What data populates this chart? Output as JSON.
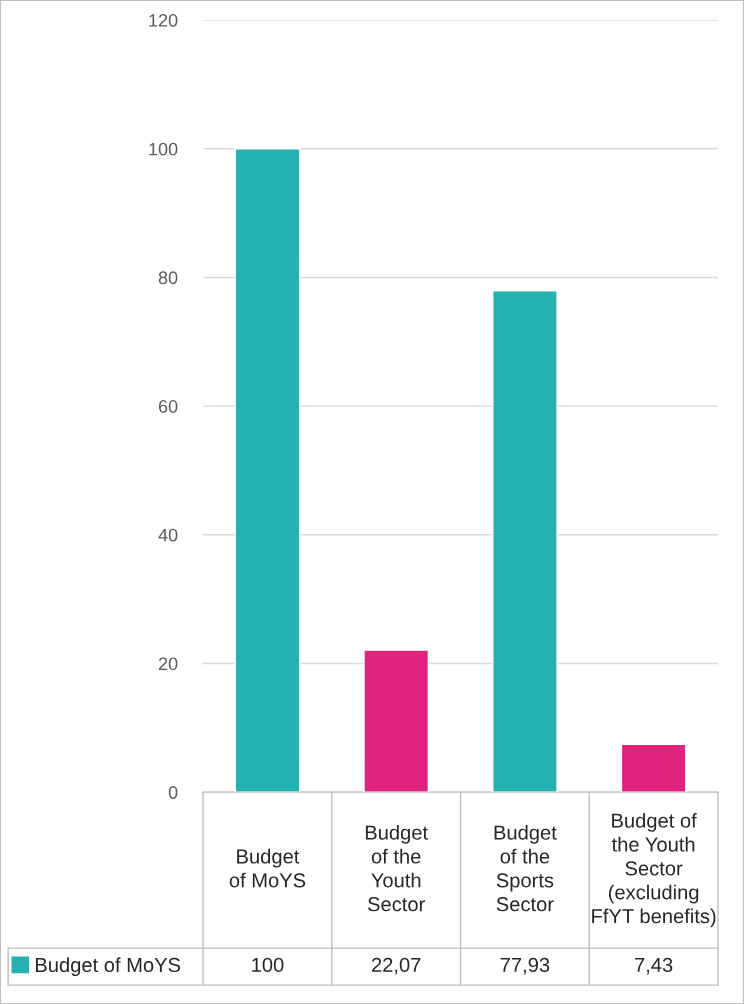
{
  "chart_data": {
    "type": "bar",
    "categories": [
      "Budget\nof MoYS",
      "Budget\nof the\nYouth\nSector",
      "Budget\nof the\nSports\nSector",
      "Budget of\nthe Youth\nSector\n(excluding\nFfYT benefits)"
    ],
    "series": [
      {
        "name": "Budget of MoYS",
        "color": "#26b1b1",
        "colors": [
          "#26b1b1",
          "#e0247e",
          "#26b1b1",
          "#e0247e"
        ],
        "values": [
          100,
          22.07,
          77.93,
          7.43
        ],
        "value_labels": [
          "100",
          "22,07",
          "77,93",
          "7,43"
        ]
      }
    ],
    "ylim": [
      0,
      120
    ],
    "yticks": [
      0,
      20,
      40,
      60,
      80,
      100,
      120
    ],
    "grid": "y",
    "legend": "bottom left"
  }
}
